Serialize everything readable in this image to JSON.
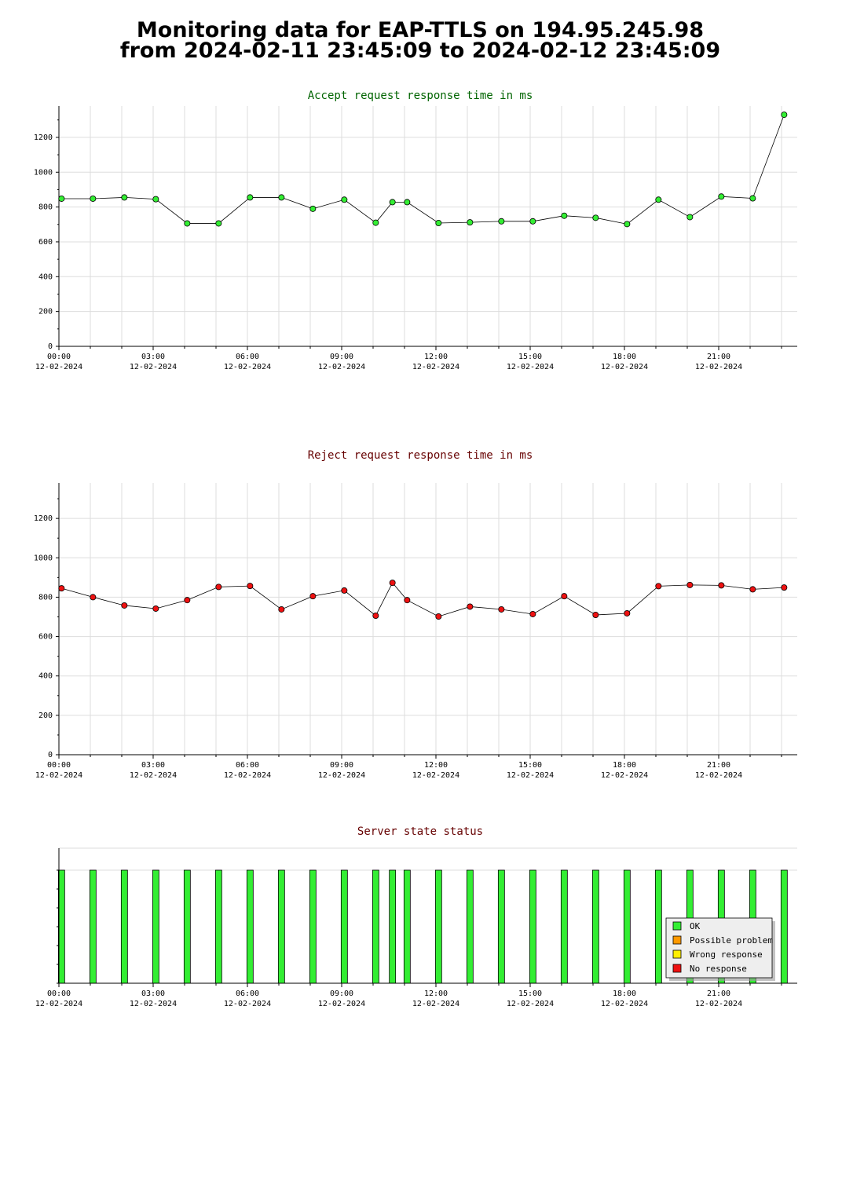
{
  "page": {
    "title_line1": "Monitoring data for EAP-TTLS on 194.95.245.98",
    "title_line2": "from 2024-02-11 23:45:09 to 2024-02-12 23:45:09"
  },
  "colors": {
    "accept_title": "#006400",
    "reject_title": "#660000",
    "status_title": "#660000",
    "accept_marker": "#33ee33",
    "reject_marker": "#ee1111",
    "ok": "#33ee33",
    "possible_problem": "#ff9900",
    "wrong_response": "#ffee00",
    "no_response": "#ee1111",
    "grid": "#dddddd"
  },
  "chart_data": [
    {
      "type": "line",
      "title": "Accept request response time in ms",
      "x_tick_labels": [
        "00:00",
        "03:00",
        "06:00",
        "09:00",
        "12:00",
        "15:00",
        "18:00",
        "21:00"
      ],
      "x_tick_dates": [
        "12-02-2024",
        "12-02-2024",
        "12-02-2024",
        "12-02-2024",
        "12-02-2024",
        "12-02-2024",
        "12-02-2024",
        "12-02-2024"
      ],
      "y_ticks": [
        0,
        200,
        400,
        600,
        800,
        1000,
        1200
      ],
      "xlim": [
        "00:00",
        "23:30"
      ],
      "ylim": [
        0,
        1380
      ],
      "grid": true,
      "x": [
        "00:05",
        "01:05",
        "02:05",
        "03:05",
        "04:05",
        "05:05",
        "06:05",
        "07:05",
        "08:05",
        "09:05",
        "10:05",
        "10:37",
        "11:05",
        "12:05",
        "13:05",
        "14:05",
        "15:05",
        "16:05",
        "17:05",
        "18:05",
        "19:05",
        "20:05",
        "21:05",
        "22:05",
        "23:05"
      ],
      "values": [
        848,
        848,
        855,
        845,
        706,
        706,
        855,
        855,
        790,
        842,
        710,
        828,
        828,
        708,
        712,
        718,
        718,
        750,
        738,
        702,
        842,
        742,
        860,
        850,
        1330
      ]
    },
    {
      "type": "line",
      "title": "Reject request response time in ms",
      "x_tick_labels": [
        "00:00",
        "03:00",
        "06:00",
        "09:00",
        "12:00",
        "15:00",
        "18:00",
        "21:00"
      ],
      "x_tick_dates": [
        "12-02-2024",
        "12-02-2024",
        "12-02-2024",
        "12-02-2024",
        "12-02-2024",
        "12-02-2024",
        "12-02-2024",
        "12-02-2024"
      ],
      "y_ticks": [
        0,
        200,
        400,
        600,
        800,
        1000,
        1200
      ],
      "xlim": [
        "00:00",
        "23:30"
      ],
      "ylim": [
        0,
        1380
      ],
      "grid": true,
      "x": [
        "00:05",
        "01:05",
        "02:05",
        "03:05",
        "04:05",
        "05:05",
        "06:05",
        "07:05",
        "08:05",
        "09:05",
        "10:05",
        "10:37",
        "11:05",
        "12:05",
        "13:05",
        "14:05",
        "15:05",
        "16:05",
        "17:05",
        "18:05",
        "19:05",
        "20:05",
        "21:05",
        "22:05",
        "23:05"
      ],
      "values": [
        845,
        800,
        758,
        742,
        785,
        852,
        857,
        738,
        805,
        834,
        706,
        873,
        785,
        702,
        752,
        738,
        714,
        805,
        710,
        718,
        856,
        862,
        860,
        840,
        849
      ]
    },
    {
      "type": "bar",
      "title": "Server state status",
      "x_tick_labels": [
        "00:00",
        "03:00",
        "06:00",
        "09:00",
        "12:00",
        "15:00",
        "18:00",
        "21:00"
      ],
      "x_tick_dates": [
        "12-02-2024",
        "12-02-2024",
        "12-02-2024",
        "12-02-2024",
        "12-02-2024",
        "12-02-2024",
        "12-02-2024",
        "12-02-2024"
      ],
      "xlim": [
        "00:00",
        "23:30"
      ],
      "x": [
        "00:05",
        "01:05",
        "02:05",
        "03:05",
        "04:05",
        "05:05",
        "06:05",
        "07:05",
        "08:05",
        "09:05",
        "10:05",
        "10:37",
        "11:05",
        "12:05",
        "13:05",
        "14:05",
        "15:05",
        "16:05",
        "17:05",
        "18:05",
        "19:05",
        "20:05",
        "21:05",
        "22:05",
        "23:05"
      ],
      "status": [
        "OK",
        "OK",
        "OK",
        "OK",
        "OK",
        "OK",
        "OK",
        "OK",
        "OK",
        "OK",
        "OK",
        "OK",
        "OK",
        "OK",
        "OK",
        "OK",
        "OK",
        "OK",
        "OK",
        "OK",
        "OK",
        "OK",
        "OK",
        "OK",
        "OK"
      ],
      "legend": [
        "OK",
        "Possible problem",
        "Wrong response",
        "No response"
      ],
      "legend_position": "bottom-right"
    }
  ]
}
